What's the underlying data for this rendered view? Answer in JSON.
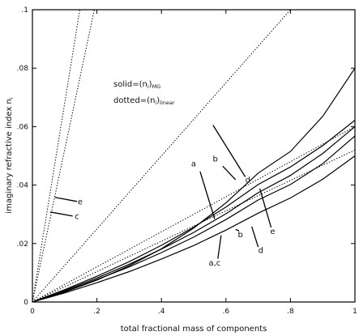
{
  "chart_data": {
    "type": "line",
    "title": "",
    "xlabel": "total fractional mass of components",
    "ylabel": "imaginary refractive index  n",
    "ylabel_subscript": "i",
    "xlim": [
      0,
      1
    ],
    "ylim": [
      0,
      0.1
    ],
    "x_ticks": [
      {
        "value": 0,
        "label": "0"
      },
      {
        "value": 0.2,
        "label": ".2"
      },
      {
        "value": 0.4,
        "label": ".4"
      },
      {
        "value": 0.6,
        "label": ".6"
      },
      {
        "value": 0.8,
        "label": ".8"
      },
      {
        "value": 1,
        "label": "1"
      }
    ],
    "y_ticks": [
      {
        "value": 0,
        "label": "0"
      },
      {
        "value": 0.02,
        "label": ".02"
      },
      {
        "value": 0.04,
        "label": ".04"
      },
      {
        "value": 0.06,
        "label": ".06"
      },
      {
        "value": 0.08,
        "label": ".08"
      },
      {
        "value": 0.1,
        "label": ".1"
      }
    ],
    "grid": false,
    "legend": {
      "solid_main": "solid=(n",
      "solid_sub_i": "i",
      "solid_close": ")",
      "solid_sub": "MG",
      "dotted_main": "dotted=(n",
      "dotted_sub_i": "i",
      "dotted_close": ")",
      "dotted_sub": "linear"
    },
    "series": [
      {
        "style": "dotted",
        "points": [
          [
            0,
            0
          ],
          [
            0.147,
            0.1
          ]
        ]
      },
      {
        "style": "dotted",
        "points": [
          [
            0,
            0
          ],
          [
            0.192,
            0.1
          ]
        ]
      },
      {
        "style": "dotted",
        "points": [
          [
            0,
            0
          ],
          [
            0.8,
            0.1
          ]
        ]
      },
      {
        "style": "dotted",
        "points": [
          [
            0,
            0
          ],
          [
            1,
            0.06
          ]
        ]
      },
      {
        "style": "dotted",
        "points": [
          [
            0,
            0
          ],
          [
            1,
            0.052
          ]
        ]
      },
      {
        "style": "solid",
        "points": [
          [
            0,
            0
          ],
          [
            0.1,
            0.0034
          ],
          [
            0.2,
            0.0075
          ],
          [
            0.3,
            0.0124
          ],
          [
            0.4,
            0.0182
          ],
          [
            0.5,
            0.0253
          ],
          [
            0.6,
            0.0339
          ],
          [
            0.7,
            0.0441
          ],
          [
            0.8,
            0.0515
          ],
          [
            0.9,
            0.0635
          ],
          [
            1,
            0.08
          ]
        ]
      },
      {
        "style": "solid",
        "points": [
          [
            0,
            0
          ],
          [
            0.1,
            0.0042
          ],
          [
            0.2,
            0.0088
          ],
          [
            0.3,
            0.0138
          ],
          [
            0.4,
            0.0194
          ],
          [
            0.5,
            0.0256
          ],
          [
            0.6,
            0.0325
          ],
          [
            0.7,
            0.0402
          ],
          [
            0.8,
            0.0462
          ],
          [
            0.9,
            0.0535
          ],
          [
            1,
            0.0622
          ]
        ]
      },
      {
        "style": "solid",
        "points": [
          [
            0,
            0
          ],
          [
            0.1,
            0.0039
          ],
          [
            0.2,
            0.0082
          ],
          [
            0.3,
            0.0129
          ],
          [
            0.4,
            0.0181
          ],
          [
            0.5,
            0.0238
          ],
          [
            0.6,
            0.0302
          ],
          [
            0.7,
            0.0374
          ],
          [
            0.8,
            0.0433
          ],
          [
            0.9,
            0.0508
          ],
          [
            1,
            0.06
          ]
        ]
      },
      {
        "style": "solid",
        "points": [
          [
            0,
            0
          ],
          [
            0.1,
            0.0036
          ],
          [
            0.2,
            0.0077
          ],
          [
            0.3,
            0.012
          ],
          [
            0.4,
            0.0169
          ],
          [
            0.5,
            0.0222
          ],
          [
            0.6,
            0.0282
          ],
          [
            0.7,
            0.0349
          ],
          [
            0.8,
            0.0402
          ],
          [
            0.9,
            0.0473
          ],
          [
            1,
            0.0568
          ]
        ]
      },
      {
        "style": "solid",
        "points": [
          [
            0,
            0
          ],
          [
            0.1,
            0.0031
          ],
          [
            0.2,
            0.0066
          ],
          [
            0.3,
            0.0104
          ],
          [
            0.4,
            0.0147
          ],
          [
            0.5,
            0.0193
          ],
          [
            0.6,
            0.0246
          ],
          [
            0.7,
            0.0304
          ],
          [
            0.8,
            0.0356
          ],
          [
            0.9,
            0.042
          ],
          [
            1,
            0.05
          ]
        ]
      }
    ],
    "annotations": [
      {
        "label": "e",
        "text_at": [
          0.148,
          0.0334
        ],
        "arrow_from": [
          0.138,
          0.0344
        ],
        "arrow_to": [
          0.07,
          0.0358
        ]
      },
      {
        "label": "c",
        "text_at": [
          0.138,
          0.0284
        ],
        "arrow_from": [
          0.125,
          0.0294
        ],
        "arrow_to": [
          0.055,
          0.0308
        ]
      },
      {
        "label": "d",
        "text_at": [
          0.668,
          0.0408
        ],
        "arrow_from": [
          0.66,
          0.0428
        ],
        "arrow_to": [
          0.56,
          0.0605
        ]
      },
      {
        "label": "a",
        "text_at": [
          0.5,
          0.0464
        ],
        "arrow_from": [
          0.52,
          0.0446
        ],
        "arrow_to": [
          0.565,
          0.0284
        ]
      },
      {
        "label": "b",
        "text_at": [
          0.567,
          0.048
        ],
        "arrow_from": [
          0.59,
          0.0465
        ],
        "arrow_to": [
          0.63,
          0.0418
        ]
      },
      {
        "label": "b",
        "text_at": [
          0.645,
          0.0222
        ],
        "arrow_from": [
          0.64,
          0.0244
        ],
        "arrow_to": [
          0.63,
          0.0248
        ]
      },
      {
        "label": "d",
        "text_at": [
          0.708,
          0.0168
        ],
        "arrow_from": [
          0.7,
          0.0188
        ],
        "arrow_to": [
          0.68,
          0.0258
        ]
      },
      {
        "label": "a,c",
        "text_at": [
          0.565,
          0.0125
        ],
        "arrow_from": [
          0.575,
          0.0148
        ],
        "arrow_to": [
          0.585,
          0.0228
        ]
      },
      {
        "label": "e",
        "text_at": [
          0.745,
          0.0233
        ],
        "arrow_from": [
          0.74,
          0.0255
        ],
        "arrow_to": [
          0.705,
          0.0388
        ]
      }
    ]
  }
}
